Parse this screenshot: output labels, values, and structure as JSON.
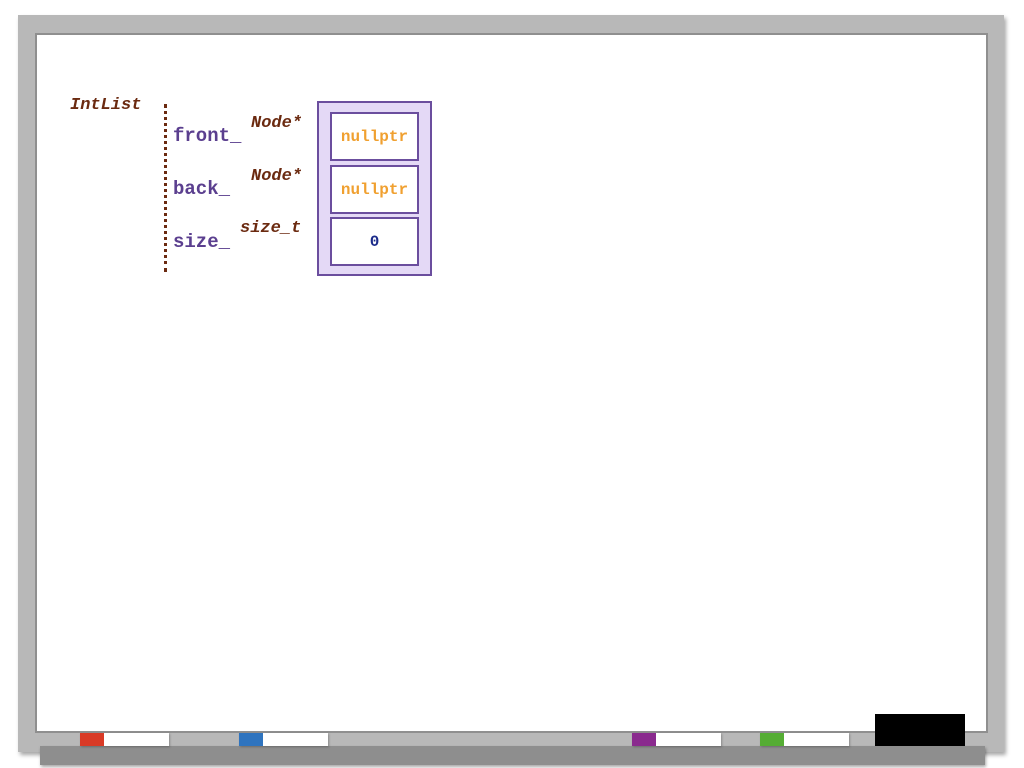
{
  "object": {
    "name": "IntList",
    "members": [
      {
        "name": "front_",
        "type": "Node*",
        "value": "nullptr",
        "value_color": "#f0a030"
      },
      {
        "name": "back_",
        "type": "Node*",
        "value": "nullptr",
        "value_color": "#f0a030"
      },
      {
        "name": "size_",
        "type": "size_t",
        "value": "0",
        "value_color": "#1a2a8a"
      }
    ]
  },
  "colors": {
    "member_label": "#5b3f8f",
    "type_label": "#6b2a10",
    "object_fill": "#e4d9f6",
    "object_border": "#6b4e9e"
  },
  "markers": [
    {
      "color": "#d93a26"
    },
    {
      "color": "#2f74bf"
    },
    {
      "color": "#8a2a8e"
    },
    {
      "color": "#55ad34"
    }
  ],
  "eraser": {
    "color": "#000000"
  }
}
